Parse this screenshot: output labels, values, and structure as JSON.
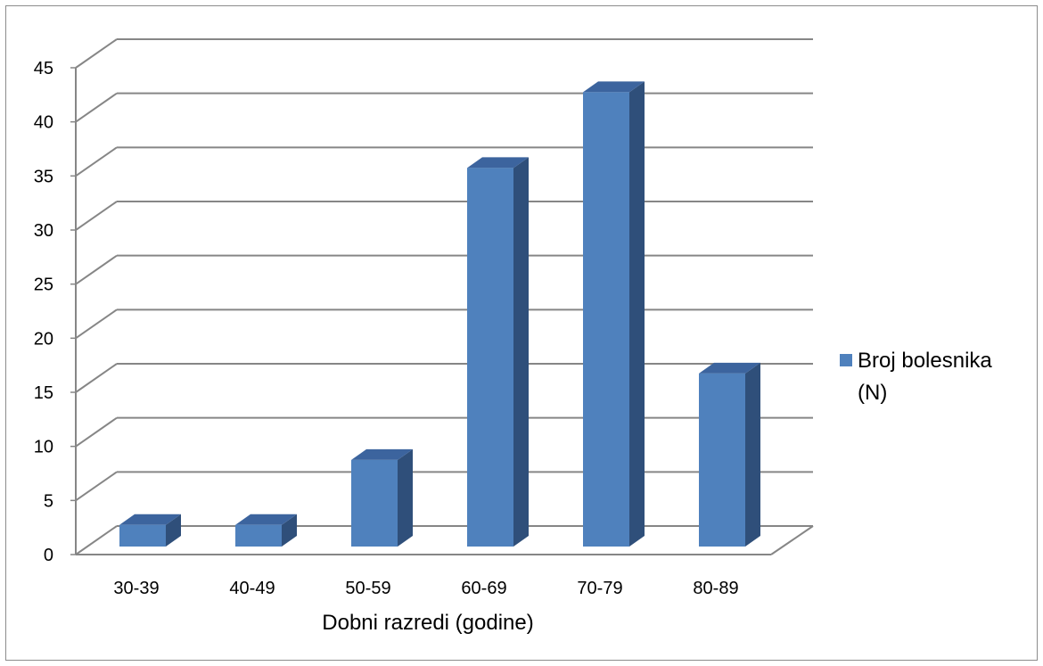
{
  "chart_data": {
    "type": "bar",
    "categories": [
      "30-39",
      "40-49",
      "50-59",
      "60-69",
      "70-79",
      "80-89"
    ],
    "series": [
      {
        "name": "Broj bolesnika (N)",
        "values": [
          2,
          2,
          8,
          35,
          42,
          16
        ]
      }
    ],
    "title": "",
    "xlabel": "Dobni razredi (godine)",
    "ylabel": "",
    "ylim": [
      0,
      45
    ],
    "yticks": [
      "0",
      "5",
      "10",
      "15",
      "20",
      "25",
      "30",
      "35",
      "40",
      "45"
    ],
    "grid": true,
    "three_d": true,
    "legend": {
      "position": "right",
      "lines": [
        "Broj bolesnika",
        "(N)"
      ]
    },
    "colors": {
      "bar_front": "#4f81bd",
      "bar_side": "#2f4f7a",
      "bar_top": "#3c649e",
      "grid": "#868686",
      "border": "#8c8c8c"
    }
  }
}
